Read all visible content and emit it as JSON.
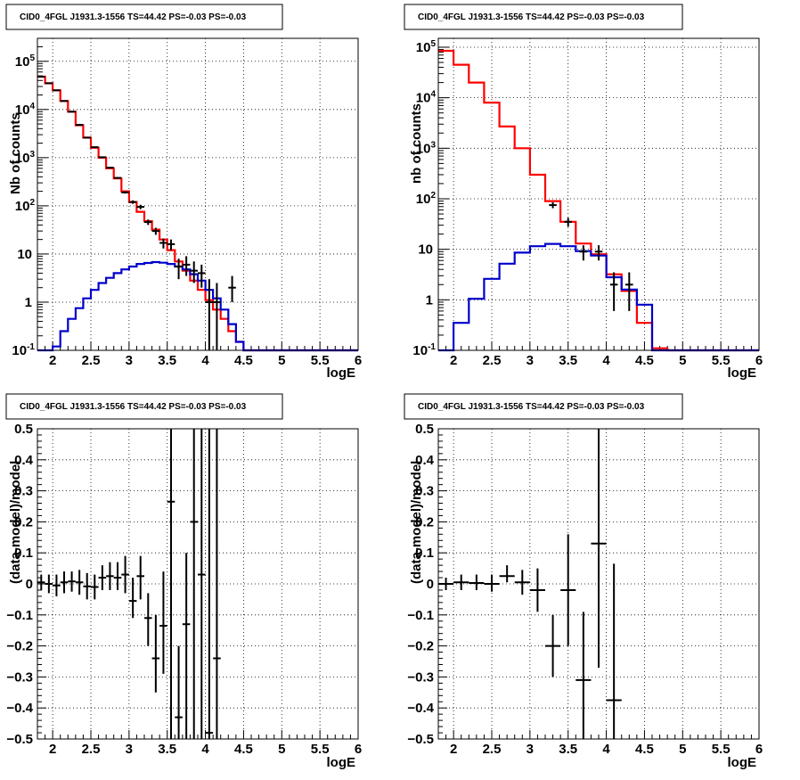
{
  "chart_data": [
    {
      "type": "histogram",
      "title": "CID0_4FGL J1931.3-1556 TS=44.42 PS=-0.03 PS=-0.03",
      "xlabel": "logE",
      "ylabel": "Nb of counts",
      "xlim": [
        1.8,
        6.0
      ],
      "ylim": [
        0.1,
        300000
      ],
      "yscale": "log",
      "grid": true,
      "x_ticks": [
        "2",
        "2.5",
        "3",
        "3.5",
        "4",
        "4.5",
        "5",
        "5.5",
        "6"
      ],
      "y_ticks": [
        "10^-1",
        "1",
        "10",
        "10^2",
        "10^3",
        "10^4",
        "10^5"
      ],
      "bin_edges": [
        1.8,
        1.9,
        2.0,
        2.1,
        2.2,
        2.3,
        2.4,
        2.5,
        2.6,
        2.7,
        2.8,
        2.9,
        3.0,
        3.1,
        3.2,
        3.3,
        3.4,
        3.5,
        3.6,
        3.7,
        3.8,
        3.9,
        4.0,
        4.1,
        4.2,
        4.3,
        4.4,
        4.5,
        4.6,
        4.7,
        4.8,
        4.9,
        5.0,
        5.1,
        5.2,
        5.3,
        5.4,
        5.5,
        5.6,
        5.7,
        5.8,
        5.9,
        6.0
      ],
      "series": [
        {
          "color": "#ff0000",
          "values": [
            48000,
            35000,
            25000,
            15000,
            9000,
            4700,
            2600,
            1600,
            1000,
            600,
            370,
            200,
            120,
            75,
            48,
            32,
            20,
            12,
            7,
            4.5,
            2.8,
            1.8,
            1.1,
            0.7,
            0.45,
            0.25,
            0.15,
            0.1,
            0.1,
            0.1,
            0.1,
            0.1,
            0.1,
            0.1,
            0.1,
            0.1,
            0.1,
            0.1,
            0.1,
            0.1,
            0.1,
            0.1
          ]
        },
        {
          "color": "#0000cc",
          "values": [
            0.1,
            0.1,
            0.12,
            0.25,
            0.45,
            0.75,
            1.2,
            1.8,
            2.5,
            3.2,
            4.0,
            4.8,
            5.5,
            6.2,
            6.5,
            6.8,
            6.6,
            6.2,
            5.5,
            4.8,
            3.8,
            2.8,
            1.8,
            1.2,
            0.7,
            0.35,
            0.15,
            0.1,
            0.1,
            0.1,
            0.1,
            0.1,
            0.1,
            0.1,
            0.1,
            0.1,
            0.1,
            0.1,
            0.1,
            0.1,
            0.1,
            0.1
          ]
        }
      ],
      "data_points": {
        "x": [
          1.85,
          1.95,
          2.05,
          2.15,
          2.25,
          2.35,
          2.45,
          2.55,
          2.65,
          2.75,
          2.85,
          2.95,
          3.05,
          3.15,
          3.25,
          3.35,
          3.45,
          3.55,
          3.65,
          3.75,
          3.85,
          3.95,
          4.05,
          4.15,
          4.35
        ],
        "y": [
          48000,
          35000,
          25000,
          15000,
          9000,
          4800,
          2600,
          1650,
          1020,
          620,
          380,
          190,
          120,
          95,
          46,
          30,
          17,
          16,
          5.5,
          6,
          4.5,
          4,
          1,
          1,
          2
        ],
        "ylo": [
          47000,
          34500,
          24700,
          14800,
          8900,
          4700,
          2550,
          1620,
          990,
          600,
          365,
          180,
          110,
          85,
          40,
          25,
          13,
          12,
          3,
          3.5,
          2.5,
          2,
          0.1,
          0.1,
          1
        ],
        "yhi": [
          49000,
          35500,
          25300,
          15200,
          9100,
          4900,
          2650,
          1680,
          1050,
          640,
          395,
          200,
          130,
          105,
          52,
          35,
          21,
          20,
          8,
          9,
          7,
          6,
          3,
          2.5,
          3.5
        ]
      }
    },
    {
      "type": "histogram",
      "title": "CID0_4FGL J1931.3-1556 TS=44.42 PS=-0.03 PS=-0.03",
      "xlabel": "logE",
      "ylabel": "nb of counts",
      "xlim": [
        1.8,
        6.0
      ],
      "ylim": [
        0.1,
        150000
      ],
      "yscale": "log",
      "grid": true,
      "x_ticks": [
        "2",
        "2.5",
        "3",
        "3.5",
        "4",
        "4.5",
        "5",
        "5.5",
        "6"
      ],
      "y_ticks": [
        "10^-1",
        "1",
        "10",
        "10^2",
        "10^3",
        "10^4",
        "10^5"
      ],
      "bin_edges": [
        1.8,
        2.0,
        2.2,
        2.4,
        2.6,
        2.8,
        3.0,
        3.2,
        3.4,
        3.6,
        3.8,
        4.0,
        4.2,
        4.4,
        4.6,
        4.8,
        5.0,
        5.2,
        5.4,
        5.6,
        5.8,
        6.0
      ],
      "series": [
        {
          "color": "#ff0000",
          "values": [
            85000,
            45000,
            20000,
            8000,
            2700,
            1000,
            300,
            90,
            35,
            13,
            8,
            3.2,
            1.5,
            0.35,
            0.11,
            0.1,
            0.1,
            0.1,
            0.1,
            0.1,
            0.1
          ]
        },
        {
          "color": "#0000cc",
          "values": [
            0.1,
            0.35,
            1.05,
            2.6,
            5.2,
            8.6,
            11.5,
            12.8,
            11.5,
            9.2,
            7.5,
            2.8,
            1.6,
            0.8,
            0.1,
            0.1,
            0.1,
            0.1,
            0.1,
            0.1,
            0.1
          ]
        }
      ],
      "data_points": {
        "x": [
          3.3,
          3.5,
          3.7,
          3.9,
          4.1,
          4.3
        ],
        "y": [
          75,
          35,
          9,
          9,
          2,
          2
        ],
        "ylo": [
          65,
          28,
          6,
          6,
          0.6,
          0.6
        ],
        "yhi": [
          85,
          42,
          12,
          12,
          3.5,
          3.5
        ]
      }
    },
    {
      "type": "scatter",
      "title": "CID0_4FGL J1931.3-1556 TS=44.42 PS=-0.03 PS=-0.03",
      "xlabel": "logE",
      "ylabel": "(data-model)/model",
      "xlim": [
        1.8,
        6.0
      ],
      "ylim": [
        -0.5,
        0.5
      ],
      "grid": true,
      "x_ticks": [
        "2",
        "2.5",
        "3",
        "3.5",
        "4",
        "4.5",
        "5",
        "5.5",
        "6"
      ],
      "y_ticks": [
        "−0.5",
        "−0.4",
        "−0.3",
        "−0.2",
        "−0.1",
        "0",
        "0.1",
        "0.2",
        "0.3",
        "0.4",
        "0.5"
      ],
      "xerr": 0.05,
      "points": {
        "x": [
          1.85,
          1.95,
          2.05,
          2.15,
          2.25,
          2.35,
          2.45,
          2.55,
          2.65,
          2.75,
          2.85,
          2.95,
          3.05,
          3.15,
          3.25,
          3.35,
          3.45,
          3.55,
          3.65,
          3.75,
          3.85,
          3.95,
          4.05,
          4.15
        ],
        "y": [
          0.005,
          0.0,
          -0.005,
          0.005,
          0.008,
          0.005,
          -0.008,
          -0.01,
          0.02,
          0.025,
          0.02,
          0.03,
          -0.055,
          0.025,
          -0.11,
          -0.24,
          -0.135,
          0.265,
          -0.43,
          -0.13,
          0.2,
          0.03,
          -0.48,
          -0.24
        ],
        "ylo": [
          -0.02,
          -0.03,
          -0.04,
          -0.03,
          -0.025,
          -0.035,
          -0.05,
          -0.05,
          -0.02,
          -0.02,
          -0.02,
          -0.03,
          -0.11,
          -0.05,
          -0.2,
          -0.35,
          -0.29,
          -0.5,
          -0.5,
          -0.5,
          -0.5,
          -0.5,
          -0.5,
          -0.5
        ],
        "yhi": [
          0.03,
          0.03,
          0.03,
          0.04,
          0.04,
          0.045,
          0.035,
          0.03,
          0.06,
          0.07,
          0.07,
          0.09,
          0.02,
          0.09,
          -0.03,
          -0.1,
          0.04,
          0.5,
          -0.2,
          0.1,
          0.5,
          0.5,
          0.5,
          0.5
        ]
      }
    },
    {
      "type": "scatter",
      "title": "CID0_4FGL J1931.3-1556 TS=44.42 PS=-0.03 PS=-0.03",
      "xlabel": "logE",
      "ylabel": "(data-model)/model",
      "xlim": [
        1.8,
        6.0
      ],
      "ylim": [
        -0.5,
        0.5
      ],
      "grid": true,
      "x_ticks": [
        "2",
        "2.5",
        "3",
        "3.5",
        "4",
        "4.5",
        "5",
        "5.5",
        "6"
      ],
      "y_ticks": [
        "−0.5",
        "−0.4",
        "−0.3",
        "−0.2",
        "−0.1",
        "0",
        "0.1",
        "0.2",
        "0.3",
        "0.4",
        "0.5"
      ],
      "xerr": 0.1,
      "points": {
        "x": [
          1.9,
          2.1,
          2.3,
          2.5,
          2.7,
          2.9,
          3.1,
          3.3,
          3.5,
          3.7,
          3.9,
          4.1
        ],
        "y": [
          0.0,
          0.005,
          0.003,
          0.0,
          0.025,
          0.005,
          -0.02,
          -0.2,
          -0.02,
          -0.31,
          0.13,
          -0.375
        ],
        "ylo": [
          -0.02,
          -0.02,
          -0.02,
          -0.025,
          0.005,
          -0.035,
          -0.09,
          -0.3,
          -0.2,
          -0.5,
          -0.27,
          -0.5
        ],
        "yhi": [
          0.02,
          0.03,
          0.03,
          0.03,
          0.06,
          0.045,
          0.05,
          -0.1,
          0.16,
          -0.09,
          0.5,
          0.065
        ]
      }
    }
  ]
}
